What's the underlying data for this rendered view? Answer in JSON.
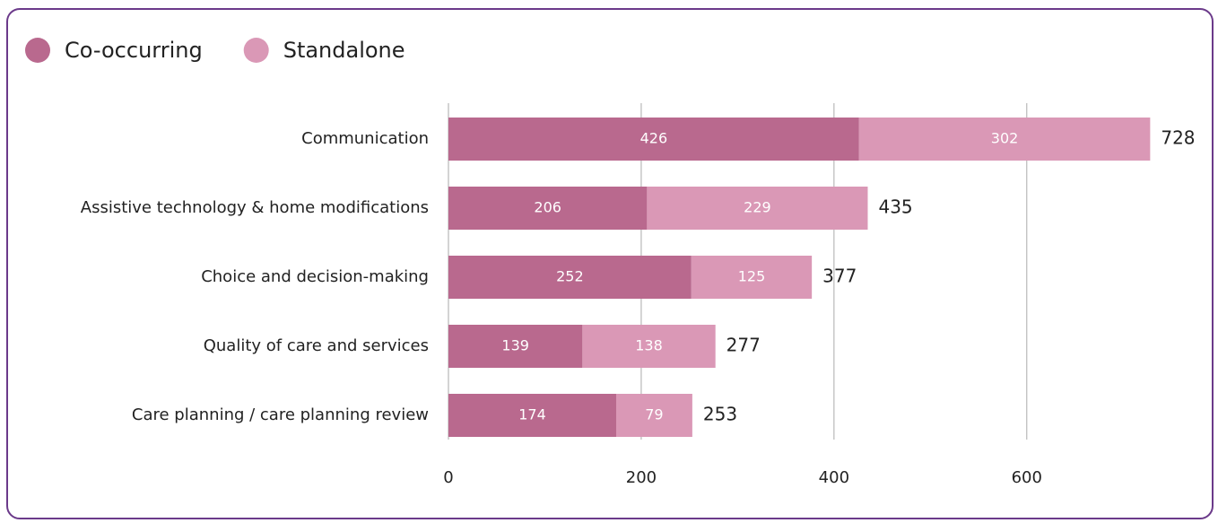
{
  "chart_data": {
    "type": "stacked-bar-horizontal",
    "categories": [
      "Communication",
      "Assistive technology & home modifications",
      "Choice and decision-making",
      "Quality of care and services",
      "Care planning / care planning review"
    ],
    "series": [
      {
        "name": "Co-occurring",
        "color": "#b9698e",
        "values": [
          426,
          206,
          252,
          139,
          174
        ]
      },
      {
        "name": "Standalone",
        "color": "#da98b6",
        "values": [
          302,
          229,
          125,
          138,
          79
        ]
      }
    ],
    "totals": [
      728,
      435,
      377,
      277,
      253
    ],
    "xlim": [
      0,
      750
    ],
    "xticks": [
      0,
      200,
      400,
      600
    ],
    "grid": true,
    "legend": "top-left"
  }
}
